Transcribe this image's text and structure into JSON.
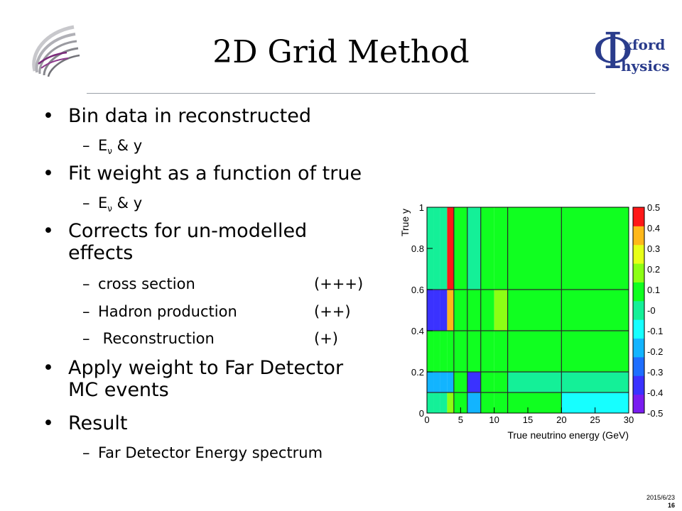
{
  "slide": {
    "title": "2D Grid Method",
    "date": "2015/6/23",
    "page": "16"
  },
  "logo_right": {
    "big": "Φ",
    "line1": "xford",
    "line2": "hysics"
  },
  "bullets": [
    {
      "text": "Bin data in reconstructed"
    },
    {
      "text": "Fit weight as a function of true"
    },
    {
      "text": "Corrects for un-modelled",
      "text2": "effects"
    },
    {
      "text": "Apply weight to Far Detector",
      "text2": "MC events"
    },
    {
      "text": "Result"
    }
  ],
  "subs": {
    "ev1": {
      "e": "E",
      "sub": "ν",
      "rest": " & y"
    },
    "ev2": {
      "e": "E",
      "sub": "ν",
      "rest": " & y"
    },
    "cross": {
      "label": "cross section",
      "tag": "(+++)"
    },
    "hadron": {
      "label": "Hadron production",
      "tag": "(++)"
    },
    "reco": {
      "label": " Reconstruction",
      "tag": "(+)"
    },
    "far": {
      "label": "Far Detector Energy spectrum"
    }
  },
  "colors": {
    "accent_purple": "#6a2a7a",
    "logo_blue": "#2a3c8c"
  },
  "chart_data": {
    "type": "heatmap",
    "xlabel": "True neutrino energy (GeV)",
    "ylabel": "True y",
    "xlim": [
      0,
      30
    ],
    "ylim": [
      0,
      1
    ],
    "x_ticks": [
      "0",
      "5",
      "10",
      "15",
      "20",
      "25",
      "30"
    ],
    "y_ticks": [
      "0",
      "0.2",
      "0.4",
      "0.6",
      "0.8",
      "1"
    ],
    "x_edges": [
      0,
      1,
      2,
      3,
      4,
      6,
      8,
      10,
      12,
      20,
      30
    ],
    "y_edges": [
      0,
      0.1,
      0.2,
      0.4,
      0.6,
      1.0
    ],
    "values": [
      [
        0.02,
        0.02,
        0.02,
        0.22,
        0.08,
        -0.22,
        0.08,
        0.08,
        0.05,
        -0.12
      ],
      [
        -0.22,
        -0.22,
        -0.22,
        -0.22,
        0.08,
        -0.32,
        0.05,
        0.05,
        0.02,
        0.0
      ],
      [
        0.05,
        0.05,
        0.05,
        0.05,
        0.05,
        0.05,
        0.05,
        0.12,
        0.05,
        0.05
      ],
      [
        -0.32,
        -0.32,
        -0.32,
        0.32,
        0.12,
        0.05,
        0.08,
        0.22,
        0.08,
        0.08
      ],
      [
        0.02,
        0.02,
        0.02,
        0.5,
        0.05,
        0.02,
        0.05,
        0.05,
        0.12,
        0.12
      ]
    ],
    "zlim": [
      -0.5,
      0.5
    ],
    "z_ticks": [
      "0.5",
      "0.4",
      "0.3",
      "0.2",
      "0.1",
      "-0",
      "-0.1",
      "-0.2",
      "-0.3",
      "-0.4",
      "-0.5"
    ],
    "palette": [
      "#7a1cf0",
      "#3a32ff",
      "#1e6eff",
      "#12b4ff",
      "#16ffff",
      "#14f098",
      "#10ff20",
      "#8cff14",
      "#e8ff18",
      "#ffb81a",
      "#ff1818"
    ]
  }
}
